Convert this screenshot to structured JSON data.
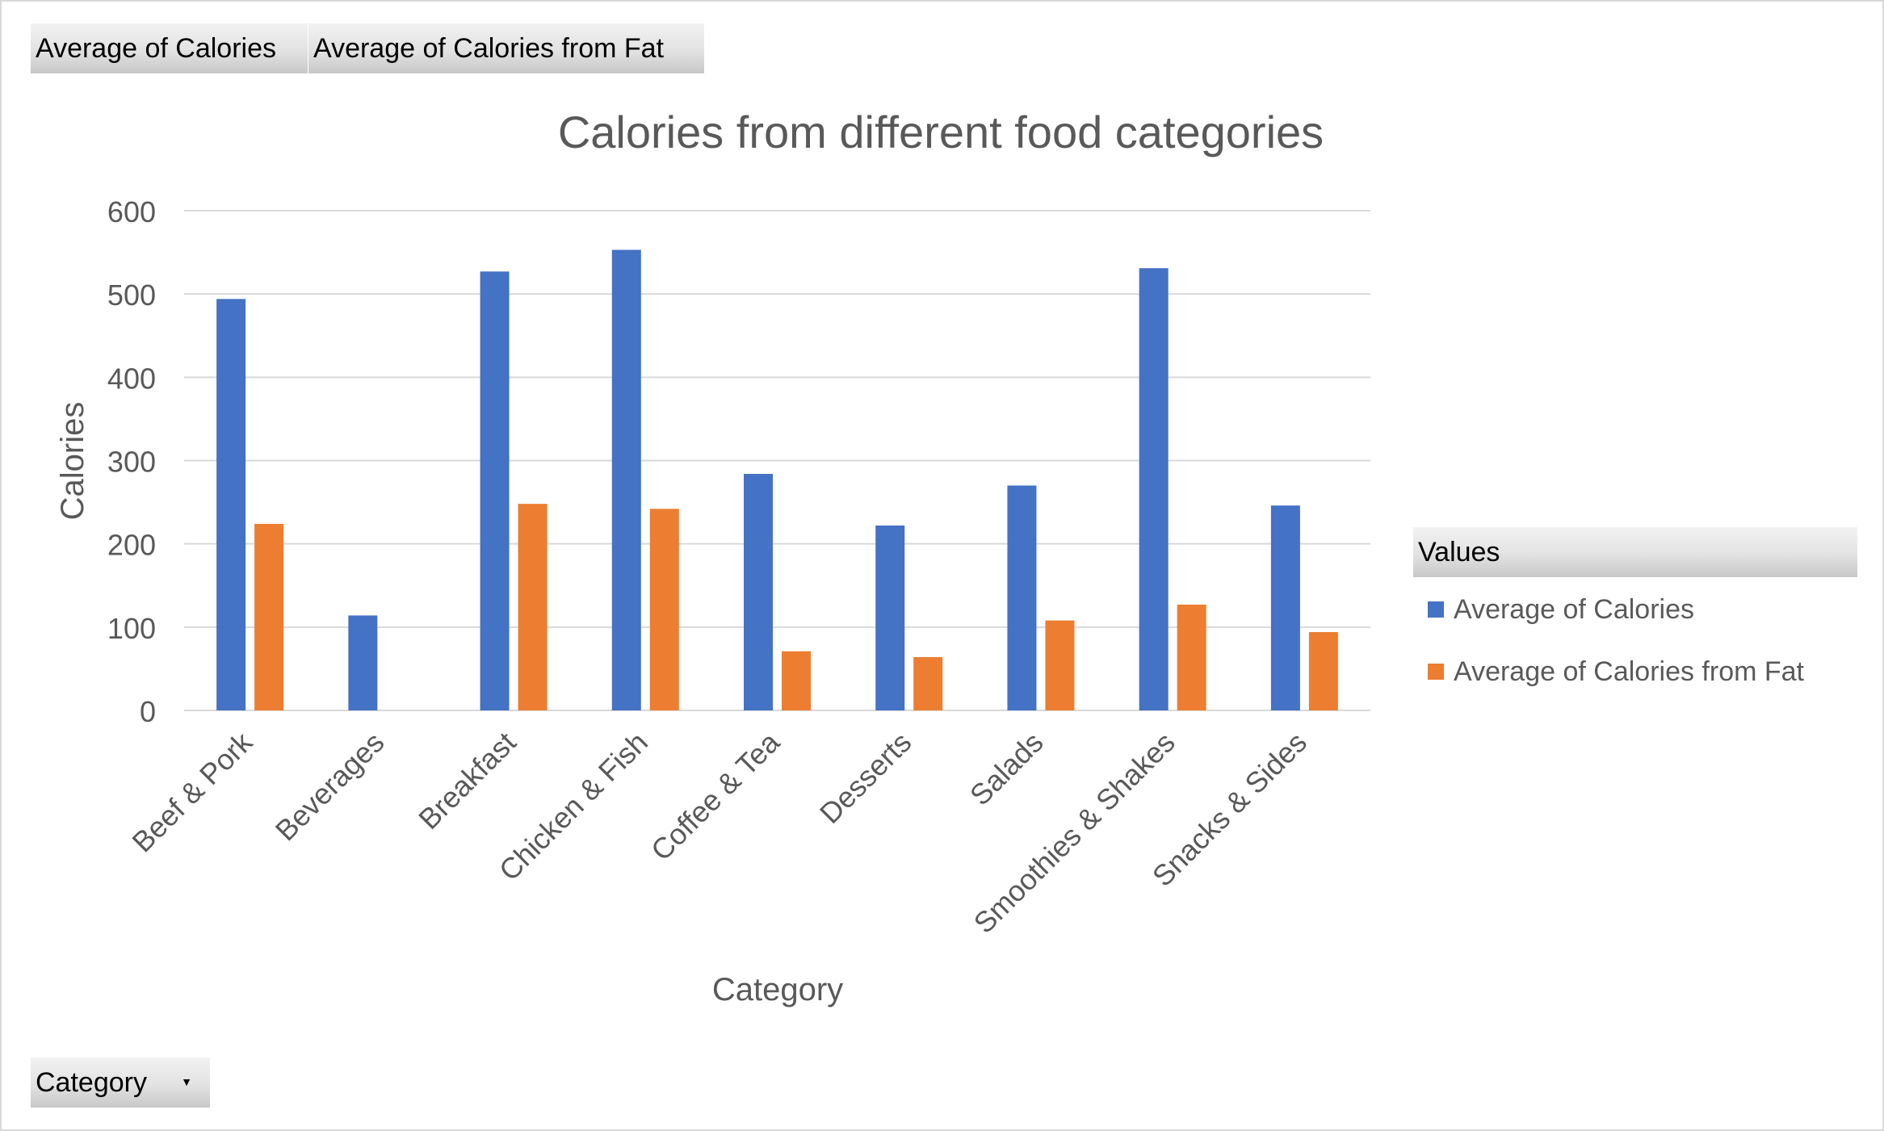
{
  "field_buttons": {
    "avg_calories": "Average  of Calories",
    "avg_calories_fat": "Average  of Calories  from Fat",
    "category": "Category"
  },
  "legend": {
    "header": "Values",
    "items": [
      {
        "label": "Average of Calories",
        "color": "#4472c4"
      },
      {
        "label": "Average of Calories from Fat",
        "color": "#ed7d31"
      }
    ]
  },
  "icons": {
    "category_dropdown": "chevron-down-icon"
  },
  "chart_data": {
    "type": "bar",
    "title": "Calories from different food categories",
    "xlabel": "Category",
    "ylabel": "Calories",
    "ylim": [
      0,
      600
    ],
    "yticks": [
      0,
      100,
      200,
      300,
      400,
      500,
      600
    ],
    "grid": true,
    "legend_position": "right",
    "categories": [
      "Beef & Pork",
      "Beverages",
      "Breakfast",
      "Chicken & Fish",
      "Coffee & Tea",
      "Desserts",
      "Salads",
      "Smoothies & Shakes",
      "Snacks & Sides"
    ],
    "series": [
      {
        "name": "Average of Calories",
        "color": "#4472c4",
        "values": [
          494,
          114,
          527,
          553,
          284,
          222,
          270,
          531,
          246
        ]
      },
      {
        "name": "Average of Calories from Fat",
        "color": "#ed7d31",
        "values": [
          224,
          0,
          248,
          242,
          71,
          64,
          108,
          127,
          94
        ]
      }
    ]
  }
}
